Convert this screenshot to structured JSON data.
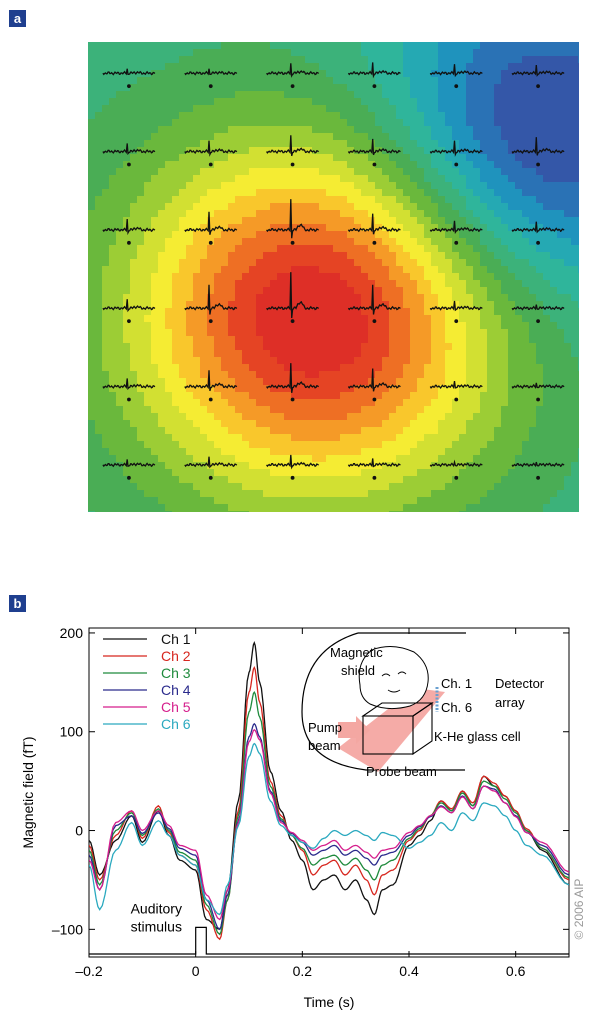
{
  "panel_a": {
    "label": "a",
    "chart_data": {
      "type": "heatmap",
      "grid_rows": 6,
      "grid_cols": 6,
      "colormap": [
        "#3457a8",
        "#2a72b5",
        "#1f93bd",
        "#25a9b3",
        "#2fb59b",
        "#3cb27a",
        "#4aad55",
        "#6ab83c",
        "#9ccd35",
        "#d2e032",
        "#f5ec33",
        "#f9c72c",
        "#f59a27",
        "#ee6f24",
        "#e54424",
        "#de2f27"
      ],
      "field_sources": [
        {
          "cx": 2.3,
          "cy": 3.0,
          "amp": 1.0,
          "sigma": 1.6
        },
        {
          "cx": 5.0,
          "cy": 0.7,
          "amp": -0.55,
          "sigma": 1.4
        }
      ],
      "trace_amplitudes": [
        [
          0.25,
          0.25,
          0.55,
          0.6,
          0.5,
          0.45
        ],
        [
          0.45,
          0.6,
          0.9,
          0.7,
          0.6,
          0.8
        ],
        [
          0.6,
          1.0,
          1.7,
          0.9,
          0.5,
          0.45
        ],
        [
          0.5,
          1.3,
          2.0,
          1.3,
          0.4,
          0.2
        ],
        [
          0.45,
          0.9,
          1.3,
          1.0,
          0.3,
          0.2
        ],
        [
          0.3,
          0.45,
          0.55,
          0.35,
          0.15,
          0.15
        ]
      ],
      "trace_color": "#111111"
    }
  },
  "panel_b": {
    "label": "b",
    "copyright": "© 2006 AIP",
    "chart_data": {
      "type": "line",
      "xlabel": "Time  (s)",
      "ylabel": "Magnetic field (fT)",
      "xlim": [
        -0.2,
        0.7
      ],
      "ylim": [
        -128,
        205
      ],
      "xticks": [
        -0.2,
        0,
        0.2,
        0.4,
        0.6
      ],
      "xtick_labels": [
        "–0.2",
        "0",
        "0.2",
        "0.4",
        "0.6"
      ],
      "yticks": [
        -100,
        0,
        100,
        200
      ],
      "ytick_labels": [
        "–100",
        "0",
        "100",
        "200"
      ],
      "series": [
        {
          "name": "Ch 1",
          "color": "#111111",
          "x": [
            -0.2,
            -0.18,
            -0.15,
            -0.12,
            -0.1,
            -0.07,
            -0.05,
            -0.03,
            0,
            0.02,
            0.045,
            0.06,
            0.08,
            0.1,
            0.11,
            0.12,
            0.14,
            0.16,
            0.18,
            0.2,
            0.22,
            0.24,
            0.26,
            0.28,
            0.3,
            0.32,
            0.335,
            0.35,
            0.37,
            0.4,
            0.42,
            0.44,
            0.46,
            0.48,
            0.5,
            0.52,
            0.54,
            0.56,
            0.58,
            0.6,
            0.62,
            0.65,
            0.7
          ],
          "y": [
            -10,
            -45,
            -10,
            15,
            -12,
            20,
            -5,
            -30,
            -40,
            -90,
            -100,
            -60,
            30,
            160,
            190,
            150,
            60,
            20,
            -10,
            -30,
            -60,
            -50,
            -45,
            -60,
            -50,
            -70,
            -85,
            -60,
            -55,
            -15,
            -5,
            10,
            30,
            20,
            40,
            25,
            55,
            45,
            35,
            20,
            0,
            -20,
            -55
          ]
        },
        {
          "name": "Ch 2",
          "color": "#d7261e",
          "x": [
            -0.2,
            -0.18,
            -0.15,
            -0.12,
            -0.1,
            -0.07,
            -0.05,
            -0.03,
            0,
            0.02,
            0.045,
            0.06,
            0.08,
            0.1,
            0.11,
            0.12,
            0.14,
            0.16,
            0.18,
            0.2,
            0.22,
            0.24,
            0.26,
            0.28,
            0.3,
            0.32,
            0.335,
            0.35,
            0.37,
            0.4,
            0.42,
            0.44,
            0.46,
            0.48,
            0.5,
            0.52,
            0.54,
            0.56,
            0.58,
            0.6,
            0.62,
            0.65,
            0.7
          ],
          "y": [
            -15,
            -50,
            -5,
            20,
            -8,
            25,
            -2,
            -25,
            -35,
            -80,
            -110,
            -70,
            20,
            140,
            165,
            130,
            50,
            15,
            -5,
            -20,
            -45,
            -35,
            -30,
            -45,
            -35,
            -50,
            -65,
            -45,
            -40,
            -10,
            0,
            15,
            30,
            22,
            40,
            28,
            55,
            48,
            35,
            20,
            2,
            -18,
            -50
          ]
        },
        {
          "name": "Ch 3",
          "color": "#1e8a3c",
          "x": [
            -0.2,
            -0.18,
            -0.15,
            -0.12,
            -0.1,
            -0.07,
            -0.05,
            -0.03,
            0,
            0.02,
            0.045,
            0.06,
            0.08,
            0.1,
            0.11,
            0.12,
            0.14,
            0.16,
            0.18,
            0.2,
            0.22,
            0.24,
            0.26,
            0.28,
            0.3,
            0.32,
            0.335,
            0.35,
            0.37,
            0.4,
            0.42,
            0.44,
            0.46,
            0.48,
            0.5,
            0.52,
            0.54,
            0.56,
            0.58,
            0.6,
            0.62,
            0.65,
            0.7
          ],
          "y": [
            -20,
            -55,
            0,
            18,
            -5,
            22,
            0,
            -22,
            -30,
            -75,
            -105,
            -70,
            15,
            120,
            140,
            115,
            45,
            12,
            -5,
            -18,
            -35,
            -28,
            -25,
            -35,
            -28,
            -40,
            -50,
            -35,
            -30,
            -8,
            2,
            15,
            28,
            20,
            38,
            25,
            50,
            45,
            32,
            18,
            0,
            -18,
            -48
          ]
        },
        {
          "name": "Ch 4",
          "color": "#2a2a8c",
          "x": [
            -0.2,
            -0.18,
            -0.15,
            -0.12,
            -0.1,
            -0.07,
            -0.05,
            -0.03,
            0,
            0.02,
            0.045,
            0.06,
            0.08,
            0.1,
            0.11,
            0.12,
            0.14,
            0.16,
            0.18,
            0.2,
            0.22,
            0.24,
            0.26,
            0.28,
            0.3,
            0.32,
            0.335,
            0.35,
            0.37,
            0.4,
            0.42,
            0.44,
            0.46,
            0.48,
            0.5,
            0.52,
            0.54,
            0.56,
            0.58,
            0.6,
            0.62,
            0.65,
            0.7
          ],
          "y": [
            -25,
            -60,
            5,
            15,
            -3,
            18,
            2,
            -18,
            -25,
            -70,
            -100,
            -65,
            10,
            95,
            108,
            95,
            40,
            10,
            -3,
            -12,
            -25,
            -20,
            -15,
            -25,
            -20,
            -28,
            -35,
            -25,
            -22,
            -5,
            4,
            14,
            25,
            18,
            35,
            22,
            45,
            42,
            28,
            15,
            -2,
            -15,
            -45
          ]
        },
        {
          "name": "Ch 5",
          "color": "#d51e8c",
          "x": [
            -0.2,
            -0.18,
            -0.15,
            -0.12,
            -0.1,
            -0.07,
            -0.05,
            -0.03,
            0,
            0.02,
            0.045,
            0.06,
            0.08,
            0.1,
            0.11,
            0.12,
            0.14,
            0.16,
            0.18,
            0.2,
            0.22,
            0.24,
            0.26,
            0.28,
            0.3,
            0.32,
            0.335,
            0.35,
            0.37,
            0.4,
            0.42,
            0.44,
            0.46,
            0.48,
            0.5,
            0.52,
            0.54,
            0.56,
            0.58,
            0.6,
            0.62,
            0.65,
            0.7
          ],
          "y": [
            -30,
            -60,
            8,
            20,
            0,
            20,
            5,
            -15,
            -20,
            -65,
            -90,
            -60,
            8,
            90,
            102,
            92,
            38,
            8,
            -2,
            -10,
            -20,
            -15,
            -10,
            -20,
            -15,
            -22,
            -28,
            -20,
            -18,
            -2,
            5,
            15,
            24,
            18,
            34,
            22,
            45,
            40,
            28,
            14,
            -2,
            -12,
            -42
          ]
        },
        {
          "name": "Ch 6",
          "color": "#2aa9bf",
          "x": [
            -0.2,
            -0.18,
            -0.15,
            -0.12,
            -0.1,
            -0.07,
            -0.05,
            -0.03,
            0,
            0.02,
            0.045,
            0.06,
            0.08,
            0.1,
            0.11,
            0.12,
            0.14,
            0.16,
            0.18,
            0.2,
            0.22,
            0.24,
            0.26,
            0.28,
            0.3,
            0.32,
            0.335,
            0.35,
            0.37,
            0.4,
            0.42,
            0.44,
            0.46,
            0.48,
            0.5,
            0.52,
            0.54,
            0.56,
            0.58,
            0.6,
            0.62,
            0.65,
            0.7
          ],
          "y": [
            -35,
            -80,
            -20,
            8,
            -15,
            10,
            -5,
            -25,
            -35,
            -70,
            -85,
            -55,
            5,
            75,
            88,
            78,
            30,
            5,
            -5,
            -12,
            -18,
            -8,
            0,
            -5,
            0,
            -5,
            -10,
            -2,
            -5,
            -18,
            -12,
            -5,
            8,
            0,
            18,
            10,
            28,
            25,
            15,
            0,
            -15,
            -25,
            -55
          ]
        }
      ],
      "stimulus": {
        "label": [
          "Auditory",
          "stimulus"
        ],
        "t_on": 0.0,
        "t_off": 0.02,
        "low": -125,
        "high": -98
      },
      "inset": {
        "labels": {
          "shield": [
            "Magnetic",
            "shield"
          ],
          "pump": [
            "Pump",
            "beam"
          ],
          "ch1": "Ch. 1",
          "ch6": "Ch. 6",
          "detector": [
            "Detector",
            "array"
          ],
          "cell": "K-He glass cell",
          "probe": "Probe beam"
        }
      }
    }
  }
}
